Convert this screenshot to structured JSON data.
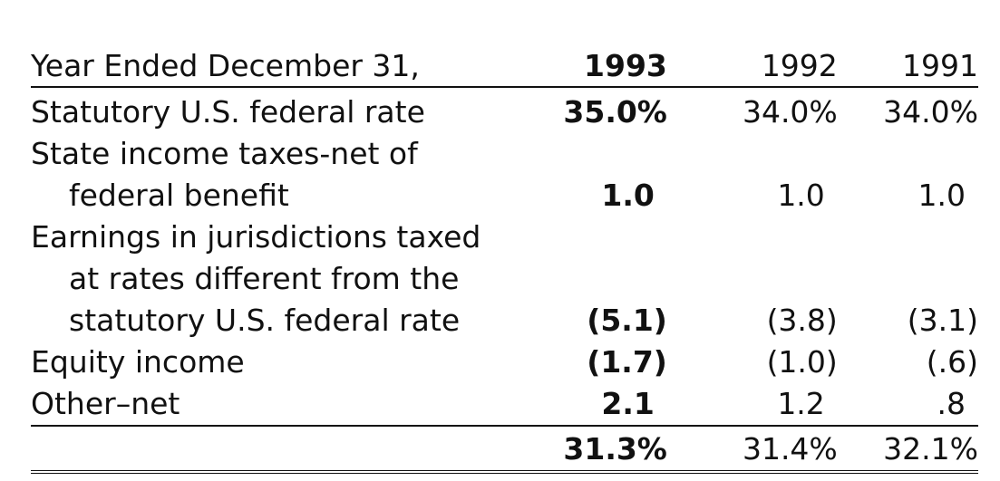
{
  "header": {
    "label": "Year Ended December 31,",
    "year_1993": "1993",
    "year_1992": "1992",
    "year_1991": "1991"
  },
  "rows": [
    {
      "label": "Statutory U.S. federal rate",
      "v1993": "35.0%",
      "v1992": "34.0%",
      "v1991": "34.0%"
    },
    {
      "label": "State income taxes-net of",
      "v1993": "",
      "v1992": "",
      "v1991": ""
    },
    {
      "label": "federal benefit",
      "v1993": "1.0",
      "v1992": "1.0",
      "v1991": "1.0"
    },
    {
      "label": "Earnings in jurisdictions taxed",
      "v1993": "",
      "v1992": "",
      "v1991": ""
    },
    {
      "label": "at rates different from the",
      "v1993": "",
      "v1992": "",
      "v1991": ""
    },
    {
      "label": "statutory U.S. federal rate",
      "v1993": "(5.1)",
      "v1992": "(3.8)",
      "v1991": "(3.1)"
    },
    {
      "label": "Equity income",
      "v1993": "(1.7)",
      "v1992": "(1.0)",
      "v1991": "(.6)"
    },
    {
      "label": "Other–net",
      "v1993": "2.1",
      "v1992": "1.2",
      "v1991": ".8"
    }
  ],
  "total": {
    "v1993": "31.3%",
    "v1992": "31.4%",
    "v1991": "32.1%"
  }
}
